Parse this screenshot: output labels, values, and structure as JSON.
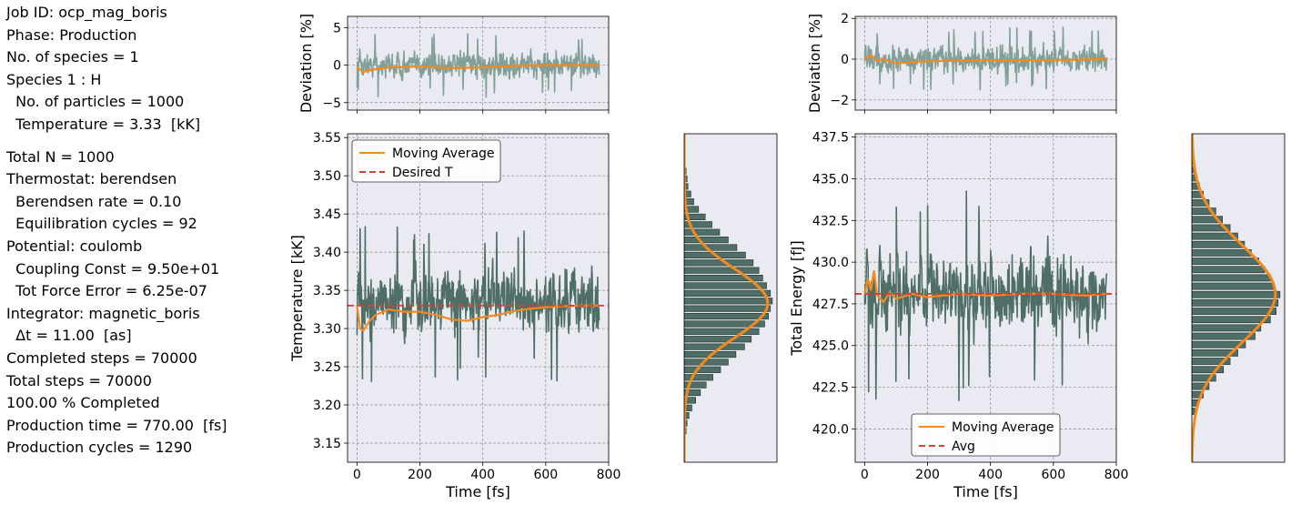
{
  "info": {
    "lines_top": [
      "Job ID: ocp_mag_boris",
      "Phase: Production",
      "No. of species = 1",
      "Species 1 : H",
      "  No. of particles = 1000",
      "  Temperature = 3.33  [kK]"
    ],
    "lines_bottom": [
      "Total N = 1000",
      "Thermostat: berendsen",
      "  Berendsen rate = 0.10",
      "  Equilibration cycles = 92",
      "Potential: coulomb",
      "  Coupling Const = 9.50e+01",
      "  Tot Force Error = 6.25e-07",
      "Integrator: magnetic_boris",
      "  Δt = 11.00  [as]",
      "Completed steps = 70000",
      "Total steps = 70000",
      "100.00 % Completed",
      "Production time = 770.00  [fs]",
      "Production cycles = 1290"
    ]
  },
  "colors": {
    "trace": "#4f6f66",
    "trace_dev": "#82a09a",
    "moving_average": "#f28a1e",
    "reference": "#e03c31",
    "axes_bg": "#eaeaf2",
    "grid": "#8a8a8a",
    "hist_bar": "#4f6f66"
  },
  "chart_data": [
    {
      "id": "temp_dev",
      "type": "line",
      "ylabel": "Deviation [%]",
      "xlim": [
        -30,
        800
      ],
      "ylim": [
        -6,
        6.5
      ],
      "yticks": [
        -5,
        0,
        5
      ],
      "xticks": [
        0,
        200,
        400,
        600,
        800
      ],
      "grid": true,
      "series": [
        {
          "role": "raw",
          "range": [
            -5.2,
            5.5
          ],
          "x_end": 770
        },
        {
          "role": "moving_average",
          "x": [
            0,
            20,
            50,
            100,
            200,
            300,
            400,
            500,
            600,
            770
          ],
          "y": [
            -0.3,
            -0.9,
            -0.6,
            -0.3,
            -0.2,
            -0.4,
            -0.3,
            -0.1,
            0.0,
            0.0
          ]
        }
      ]
    },
    {
      "id": "temperature",
      "type": "line",
      "xlabel": "Time [fs]",
      "ylabel": "Temperature [kK]",
      "xlim": [
        -30,
        800
      ],
      "ylim": [
        3.125,
        3.555
      ],
      "yticks": [
        3.15,
        3.2,
        3.25,
        3.3,
        3.35,
        3.4,
        3.45,
        3.5,
        3.55
      ],
      "xticks": [
        0,
        200,
        400,
        600,
        800
      ],
      "grid": true,
      "legend": "upper left",
      "series": [
        {
          "name": "Moving Average",
          "x": [
            0,
            10,
            20,
            40,
            60,
            100,
            150,
            200,
            250,
            300,
            350,
            400,
            450,
            500,
            550,
            600,
            650,
            700,
            770
          ],
          "y": [
            3.33,
            3.3,
            3.297,
            3.31,
            3.318,
            3.325,
            3.322,
            3.322,
            3.318,
            3.312,
            3.31,
            3.315,
            3.318,
            3.323,
            3.326,
            3.328,
            3.329,
            3.33,
            3.33
          ]
        },
        {
          "name": "Desired T",
          "y": 3.33
        }
      ],
      "raw_range": [
        3.155,
        3.53
      ]
    },
    {
      "id": "temp_hist",
      "type": "bar",
      "orientation": "horizontal",
      "ylim": [
        3.125,
        3.555
      ],
      "bin_centers": [
        3.155,
        3.165,
        3.175,
        3.185,
        3.195,
        3.205,
        3.215,
        3.225,
        3.235,
        3.245,
        3.255,
        3.265,
        3.275,
        3.285,
        3.295,
        3.305,
        3.315,
        3.325,
        3.335,
        3.345,
        3.355,
        3.365,
        3.375,
        3.385,
        3.395,
        3.405,
        3.415,
        3.425,
        3.435,
        3.445,
        3.455,
        3.465,
        3.475,
        3.485,
        3.495,
        3.505,
        3.515,
        3.525
      ],
      "counts": [
        1,
        2,
        3,
        5,
        8,
        12,
        17,
        23,
        30,
        38,
        46,
        54,
        63,
        70,
        78,
        84,
        88,
        90,
        92,
        90,
        86,
        82,
        78,
        72,
        64,
        55,
        46,
        37,
        29,
        22,
        15,
        10,
        7,
        4,
        3,
        2,
        1,
        1
      ],
      "fit": {
        "mean": 3.333,
        "sigma": 0.045
      }
    },
    {
      "id": "energy_dev",
      "type": "line",
      "ylabel": "Deviation [%]",
      "xlim": [
        -30,
        800
      ],
      "ylim": [
        -2.5,
        2.1
      ],
      "yticks": [
        -2,
        0,
        2
      ],
      "xticks": [
        0,
        200,
        400,
        600,
        800
      ],
      "grid": true,
      "series": [
        {
          "role": "raw",
          "range": [
            -2.3,
            1.8
          ],
          "x_end": 770
        },
        {
          "role": "moving_average",
          "x": [
            0,
            20,
            40,
            60,
            100,
            200,
            400,
            600,
            770
          ],
          "y": [
            0.0,
            0.2,
            -0.1,
            0.0,
            -0.2,
            -0.1,
            -0.05,
            -0.05,
            0.0
          ]
        }
      ]
    },
    {
      "id": "energy",
      "type": "line",
      "xlabel": "Time [fs]",
      "ylabel": "Total Energy [fJ]",
      "xlim": [
        -30,
        800
      ],
      "ylim": [
        418,
        437.7
      ],
      "yticks": [
        420.0,
        422.5,
        425.0,
        427.5,
        430.0,
        432.5,
        435.0,
        437.5
      ],
      "xticks": [
        0,
        200,
        400,
        600,
        800
      ],
      "grid": true,
      "legend": "lower center",
      "series": [
        {
          "name": "Moving Average",
          "x": [
            0,
            10,
            20,
            30,
            40,
            60,
            80,
            100,
            150,
            200,
            300,
            400,
            500,
            600,
            700,
            770
          ],
          "y": [
            428.1,
            429.0,
            428.3,
            429.5,
            428.0,
            427.6,
            428.2,
            427.8,
            428.1,
            427.9,
            428.1,
            428.0,
            428.1,
            428.1,
            428.0,
            428.1
          ]
        },
        {
          "name": "Avg",
          "y": 428.1
        }
      ],
      "raw_range": [
        418.6,
        435.5
      ]
    },
    {
      "id": "energy_hist",
      "type": "bar",
      "orientation": "horizontal",
      "ylim": [
        418,
        437.7
      ],
      "bin_centers": [
        421.0,
        421.5,
        422.0,
        422.5,
        423.0,
        423.5,
        424.0,
        424.5,
        425.0,
        425.5,
        426.0,
        426.5,
        427.0,
        427.5,
        428.0,
        428.5,
        429.0,
        429.5,
        430.0,
        430.5,
        431.0,
        431.5,
        432.0,
        432.5,
        433.0,
        433.5,
        434.0,
        434.5,
        435.0,
        435.5,
        436.0
      ],
      "counts": [
        3,
        7,
        12,
        18,
        25,
        33,
        40,
        48,
        56,
        66,
        72,
        82,
        88,
        90,
        92,
        86,
        82,
        76,
        70,
        62,
        55,
        48,
        40,
        32,
        25,
        18,
        12,
        8,
        5,
        3,
        2
      ],
      "fit": {
        "mean": 428.1,
        "sigma": 2.9
      }
    }
  ]
}
